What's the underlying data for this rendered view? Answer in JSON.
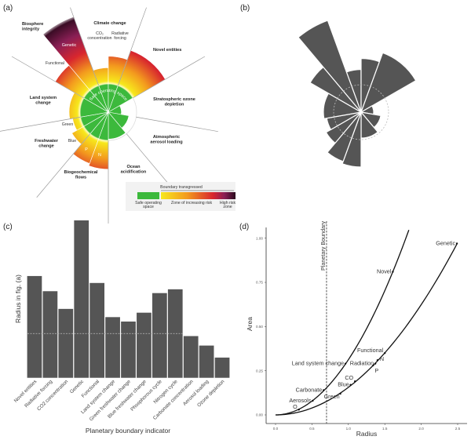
{
  "panels": {
    "a": {
      "tag": "(a)",
      "labels": {
        "biosphere": [
          "Biosphere",
          "integrity"
        ],
        "climate": "Climate change",
        "co2": [
          "CO₂",
          "concentration"
        ],
        "radiative": [
          "Radiative",
          "forcing"
        ],
        "novel": "Novel entities",
        "genetic": "Genetic",
        "functional": "Functional",
        "land": [
          "Land system",
          "change"
        ],
        "ozone": [
          "Stratospheric ozone",
          "depletion"
        ],
        "green": "Green",
        "blue": "Blue",
        "freshwater": [
          "Freshwater",
          "change"
        ],
        "aerosol": [
          "Atmospheric",
          "aerosol loading"
        ],
        "p": "P",
        "n": "N",
        "ocean": [
          "Ocean",
          "acidification"
        ],
        "biogeo": [
          "Biogeochemical",
          "flows"
        ],
        "safe_space": "Safe operating space"
      },
      "legend": {
        "transgressed": "Boundary transgressed",
        "safe": [
          "Safe operating",
          "space"
        ],
        "increasing": "Zone of increasing risk",
        "high": [
          "High risk",
          "zone"
        ]
      },
      "colors": {
        "safe": "#3cb93c",
        "yellow": "#f7e81c",
        "orange": "#f39a1e",
        "red": "#d8262e",
        "purple": "#8a1f55",
        "dark": "#2a0a1e"
      }
    },
    "b": {
      "tag": "(b)"
    },
    "c": {
      "tag": "(c)"
    },
    "d": {
      "tag": "(d)"
    }
  },
  "chart_data": [
    {
      "panel": "b",
      "type": "polar-bar",
      "sectors": [
        {
          "name": "CO2 concentration",
          "start_deg": -20,
          "end_deg": 0,
          "radius": 1.09
        },
        {
          "name": "Radiative forcing",
          "start_deg": 0,
          "end_deg": 20,
          "radius": 1.37
        },
        {
          "name": "Novel entities",
          "start_deg": 20,
          "end_deg": 60,
          "radius": 1.61
        },
        {
          "name": "Ozone depletion",
          "start_deg": 60,
          "end_deg": 100,
          "radius": 0.32
        },
        {
          "name": "Aerosol loading",
          "start_deg": 100,
          "end_deg": 140,
          "radius": 0.51
        },
        {
          "name": "Carbonate concentration",
          "start_deg": 140,
          "end_deg": 180,
          "radius": 0.66
        },
        {
          "name": "Nitrogen cycle",
          "start_deg": 180,
          "end_deg": 200,
          "radius": 1.4
        },
        {
          "name": "Phosphorous cycle",
          "start_deg": 200,
          "end_deg": 220,
          "radius": 1.34
        },
        {
          "name": "Blue freshwater change",
          "start_deg": 220,
          "end_deg": 240,
          "radius": 1.03
        },
        {
          "name": "Green freshwater change",
          "start_deg": 240,
          "end_deg": 260,
          "radius": 0.89
        },
        {
          "name": "Land system change",
          "start_deg": 260,
          "end_deg": 300,
          "radius": 0.96
        },
        {
          "name": "Functional",
          "start_deg": 300,
          "end_deg": 320,
          "radius": 1.5
        },
        {
          "name": "Genetic",
          "start_deg": 320,
          "end_deg": 340,
          "radius": 2.49
        }
      ],
      "boundary_radius": 0.7
    },
    {
      "panel": "c",
      "type": "bar",
      "xlabel": "Planetary boundary indicator",
      "ylabel": "Radius in fig. (a)",
      "categories": [
        "Novel entities",
        "Radiative forcing",
        "CO2 concentration",
        "Genetic",
        "Functional",
        "Land system change",
        "Green freshwater change",
        "Blue freshwater change",
        "Phosphorous cycle",
        "Nitrogen cycle",
        "Carbonate concentration",
        "Aerosol loading",
        "Ozone depletion"
      ],
      "values": [
        1.61,
        1.37,
        1.09,
        2.49,
        1.5,
        0.96,
        0.89,
        1.03,
        1.34,
        1.4,
        0.66,
        0.51,
        0.32
      ],
      "reference_line": 0.7,
      "ylim": [
        0,
        2.49
      ],
      "grid": false,
      "color": "#555555"
    },
    {
      "panel": "d",
      "type": "scatter",
      "xlabel": "Radius",
      "ylabel": "Area",
      "xlim": [
        0,
        2.5
      ],
      "ylim": [
        0,
        1.0
      ],
      "xticks": [
        "0.0",
        "0.5",
        "1.0",
        "1.5",
        "2.0",
        "2.5"
      ],
      "yticks": [
        "0.00",
        "0.25",
        "0.50",
        "0.75",
        "1.00"
      ],
      "vline": {
        "x": 0.7,
        "label": "Planetary Boundary"
      },
      "curves": [
        {
          "area_coefficient": 0.3125,
          "r_max": 1.83
        },
        {
          "area_coefficient": 0.156,
          "r_max": 2.49
        }
      ],
      "points": [
        {
          "label": "Novel",
          "x": 1.61,
          "y": 0.81
        },
        {
          "label": "Land system change",
          "x": 0.96,
          "y": 0.29
        },
        {
          "label": "Carbonate",
          "x": 0.66,
          "y": 0.14
        },
        {
          "label": "Aerosols",
          "x": 0.51,
          "y": 0.08
        },
        {
          "label": "O",
          "x": 0.32,
          "y": 0.03
        },
        {
          "label": "Genetic",
          "x": 2.49,
          "y": 0.97
        },
        {
          "label": "Functional",
          "x": 1.5,
          "y": 0.35
        },
        {
          "label": "N",
          "x": 1.4,
          "y": 0.31
        },
        {
          "label": "Radiation",
          "x": 1.37,
          "y": 0.29
        },
        {
          "label": "P",
          "x": 1.34,
          "y": 0.28
        },
        {
          "label": "CO",
          "x": 1.09,
          "y": 0.19
        },
        {
          "label": "Blue",
          "x": 1.03,
          "y": 0.17
        },
        {
          "label": "Green",
          "x": 0.89,
          "y": 0.12
        }
      ],
      "grid": false
    }
  ]
}
